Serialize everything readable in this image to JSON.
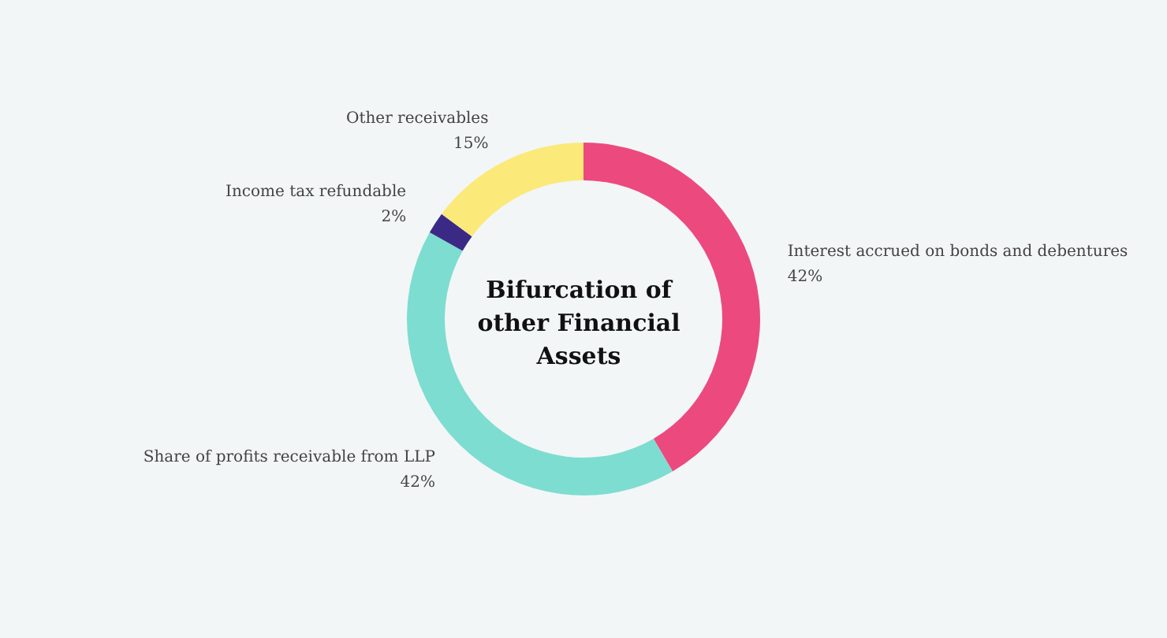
{
  "chart_data": {
    "type": "donut",
    "title": "Bifurcation of other Financial Assets",
    "categories": [
      "Interest accrued on bonds and debentures",
      "Share of profits receivable from LLP",
      "Income tax refundable",
      "Other receivables"
    ],
    "values": [
      42,
      42,
      2,
      15
    ],
    "colors": [
      "#ec4a7e",
      "#7dddd0",
      "#3b2a85",
      "#fbe97a"
    ],
    "value_labels": [
      "42%",
      "42%",
      "2%",
      "15%"
    ],
    "legend": false
  }
}
